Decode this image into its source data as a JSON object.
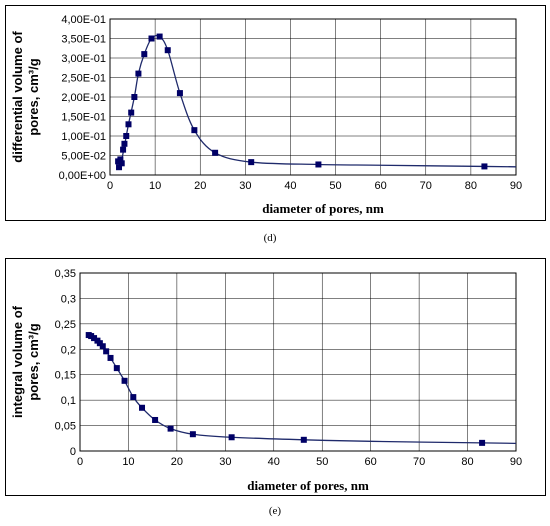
{
  "chart_data": [
    {
      "type": "scatter",
      "caption": "(d)",
      "xlabel": "diameter of pores, nm",
      "ylabel_lines": [
        "differential volume of",
        "pores, cm³/g"
      ],
      "xlim": [
        0,
        90
      ],
      "ylim": [
        0,
        0.4
      ],
      "xticks": [
        0,
        10,
        20,
        30,
        40,
        50,
        60,
        70,
        80,
        90
      ],
      "ytick_labels": [
        "0,00E+00",
        "5,00E-02",
        "1,00E-01",
        "1,50E-01",
        "2,00E-01",
        "2,50E-01",
        "3,00E-01",
        "3,50E-01",
        "4,00E-01"
      ],
      "ytick_values": [
        0,
        0.05,
        0.1,
        0.15,
        0.2,
        0.25,
        0.3,
        0.35,
        0.4
      ],
      "grid": true,
      "series": [
        {
          "x": [
            1.8,
            2.0,
            2.3,
            2.6,
            2.9,
            3.2,
            3.6,
            4.1,
            4.7,
            5.4,
            6.3,
            7.6,
            9.2,
            11.0,
            12.8,
            15.5,
            18.7,
            23.3,
            31.3,
            46.2,
            83.0
          ],
          "y": [
            0.035,
            0.02,
            0.04,
            0.03,
            0.065,
            0.08,
            0.1,
            0.13,
            0.16,
            0.2,
            0.26,
            0.31,
            0.35,
            0.355,
            0.32,
            0.21,
            0.115,
            0.057,
            0.033,
            0.027,
            0.022
          ],
          "curve_x": [
            1.8,
            2.5,
            3.2,
            4.1,
            5.4,
            6.3,
            7.6,
            9.2,
            11.0,
            12.8,
            15.5,
            18.7,
            23.3,
            31.3,
            46.2,
            60,
            83.0,
            90
          ],
          "curve_y": [
            0.02,
            0.035,
            0.075,
            0.13,
            0.2,
            0.26,
            0.31,
            0.35,
            0.355,
            0.32,
            0.21,
            0.115,
            0.057,
            0.033,
            0.027,
            0.025,
            0.022,
            0.021
          ]
        }
      ]
    },
    {
      "type": "scatter",
      "caption": "(e)",
      "xlabel": "diameter of pores, nm",
      "ylabel_lines": [
        "integral volume of",
        "pores, cm³/g"
      ],
      "xlim": [
        0,
        90
      ],
      "ylim": [
        0,
        0.35
      ],
      "xticks": [
        0,
        10,
        20,
        30,
        40,
        50,
        60,
        70,
        80,
        90
      ],
      "ytick_labels": [
        "0",
        "0,05",
        "0,1",
        "0,15",
        "0,2",
        "0,25",
        "0,3",
        "0,35"
      ],
      "ytick_values": [
        0,
        0.05,
        0.1,
        0.15,
        0.2,
        0.25,
        0.3,
        0.35
      ],
      "grid": true,
      "series": [
        {
          "x": [
            1.8,
            2.3,
            2.9,
            3.6,
            4.1,
            4.7,
            5.4,
            6.3,
            7.6,
            9.2,
            11.0,
            12.8,
            15.5,
            18.7,
            23.3,
            31.3,
            46.2,
            83.0
          ],
          "y": [
            0.228,
            0.226,
            0.222,
            0.217,
            0.212,
            0.206,
            0.196,
            0.183,
            0.163,
            0.138,
            0.106,
            0.085,
            0.061,
            0.044,
            0.033,
            0.027,
            0.022,
            0.016
          ],
          "curve_x": [
            1.8,
            2.9,
            4.1,
            5.4,
            6.3,
            7.6,
            9.2,
            11.0,
            12.8,
            15.5,
            18.7,
            23.3,
            31.3,
            46.2,
            60,
            83.0,
            90
          ],
          "curve_y": [
            0.228,
            0.222,
            0.212,
            0.196,
            0.183,
            0.163,
            0.138,
            0.106,
            0.085,
            0.061,
            0.044,
            0.033,
            0.027,
            0.022,
            0.019,
            0.016,
            0.015
          ]
        }
      ]
    }
  ]
}
